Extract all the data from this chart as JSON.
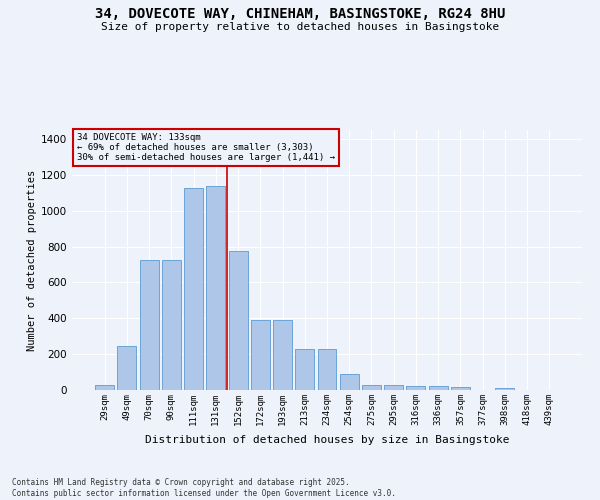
{
  "title_line1": "34, DOVECOTE WAY, CHINEHAM, BASINGSTOKE, RG24 8HU",
  "title_line2": "Size of property relative to detached houses in Basingstoke",
  "xlabel": "Distribution of detached houses by size in Basingstoke",
  "ylabel": "Number of detached properties",
  "bar_labels": [
    "29sqm",
    "49sqm",
    "70sqm",
    "90sqm",
    "111sqm",
    "131sqm",
    "152sqm",
    "172sqm",
    "193sqm",
    "213sqm",
    "234sqm",
    "254sqm",
    "275sqm",
    "295sqm",
    "316sqm",
    "336sqm",
    "357sqm",
    "377sqm",
    "398sqm",
    "418sqm",
    "439sqm"
  ],
  "bar_values": [
    30,
    245,
    725,
    725,
    1125,
    1135,
    775,
    390,
    390,
    230,
    230,
    90,
    30,
    30,
    20,
    20,
    15,
    0,
    10,
    0,
    0
  ],
  "bar_color": "#aec6e8",
  "bar_edge_color": "#5b9bd5",
  "vline_x": 5.5,
  "vline_color": "#cc0000",
  "annotation_title": "34 DOVECOTE WAY: 133sqm",
  "annotation_line1": "← 69% of detached houses are smaller (3,303)",
  "annotation_line2": "30% of semi-detached houses are larger (1,441) →",
  "annotation_box_color": "#cc0000",
  "ylim": [
    0,
    1450
  ],
  "yticks": [
    0,
    200,
    400,
    600,
    800,
    1000,
    1200,
    1400
  ],
  "background_color": "#eef2fa",
  "grid_color": "#ffffff",
  "footer_line1": "Contains HM Land Registry data © Crown copyright and database right 2025.",
  "footer_line2": "Contains public sector information licensed under the Open Government Licence v3.0."
}
